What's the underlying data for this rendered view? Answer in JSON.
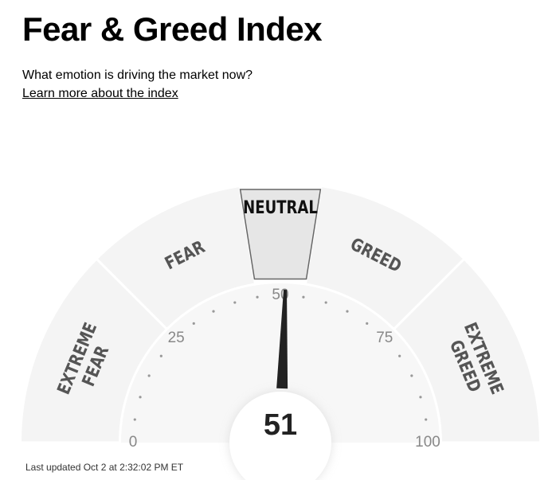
{
  "header": {
    "title": "Fear & Greed Index",
    "subtitle": "What emotion is driving the market now?",
    "learn_more_label": "Learn more about the index"
  },
  "gauge": {
    "value": 51,
    "value_label": "51",
    "active_zone": "NEUTRAL",
    "zones": [
      {
        "line1": "EXTREME",
        "line2": "FEAR",
        "from": 0,
        "to": 25
      },
      {
        "line1": "FEAR",
        "line2": "",
        "from": 25,
        "to": 45
      },
      {
        "line1": "NEUTRAL",
        "line2": "",
        "from": 45,
        "to": 55
      },
      {
        "line1": "GREED",
        "line2": "",
        "from": 55,
        "to": 75
      },
      {
        "line1": "EXTREME",
        "line2": "GREED",
        "from": 75,
        "to": 100
      }
    ],
    "ticks": [
      {
        "value": 0,
        "label": "0"
      },
      {
        "value": 25,
        "label": "25"
      },
      {
        "value": 50,
        "label": "50"
      },
      {
        "value": 75,
        "label": "75"
      },
      {
        "value": 100,
        "label": "100"
      }
    ],
    "colors": {
      "zone": "#f4f4f4",
      "active_zone": "#e6e6e6",
      "active_border": "#666666",
      "dial_bg": "#f7f7f7",
      "needle": "#222222",
      "zone_text": "#555555",
      "active_text": "#111111",
      "tick_text": "#888888",
      "dot": "#999999"
    }
  },
  "footer": {
    "last_updated": "Last updated Oct 2 at 2:32:02 PM ET"
  }
}
